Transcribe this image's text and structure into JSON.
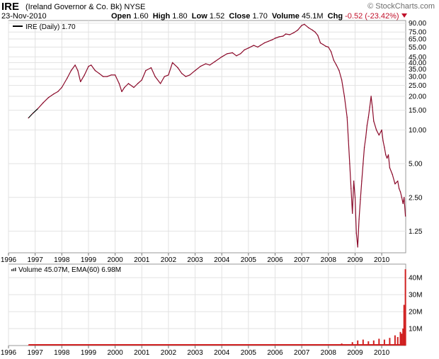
{
  "header": {
    "symbol": "IRE",
    "company": "(Ireland Governor & Co. Bk)",
    "exchange": "NYSE",
    "date": "23-Nov-2010",
    "brand": "© StockCharts.com",
    "open_label": "Open",
    "open": "1.60",
    "high_label": "High",
    "high": "1.80",
    "low_label": "Low",
    "low": "1.52",
    "close_label": "Close",
    "close": "1.70",
    "volume_label": "Volume",
    "volume": "45.1M",
    "chg_label": "Chg",
    "chg": "-0.52 (-23.42%)"
  },
  "colors": {
    "price_line": "#8b0a2a",
    "early_line": "#000000",
    "volume_fill": "#d02020",
    "grid": "#e2e2e2",
    "border": "#9a9a9a",
    "chg_down": "#c0102a"
  },
  "chart_data": [
    {
      "type": "line",
      "legend": "IRE (Daily) 1.70",
      "y_scale": "log",
      "ylim": [
        0.8,
        95
      ],
      "y_ticks": [
        90,
        75,
        65,
        55,
        45,
        40,
        35,
        30,
        25,
        20,
        15,
        10,
        5,
        2.5,
        1.25
      ],
      "y_tick_labels": [
        "90.00",
        "75.00",
        "65.00",
        "55.00",
        "45.00",
        "40.00",
        "35.00",
        "30.00",
        "25.00",
        "20.00",
        "15.00",
        "10.00",
        "5.00",
        "2.50",
        "1.25"
      ],
      "x_tick_labels": [
        "1996",
        "1997",
        "1998",
        "1999",
        "2000",
        "2001",
        "2002",
        "2003",
        "2004",
        "2005",
        "2006",
        "2007",
        "2008",
        "2009",
        "2010"
      ],
      "x_ticks": [
        1996.0,
        1997.0,
        1998.0,
        1999.0,
        2000.0,
        2001.0,
        2002.0,
        2003.0,
        2004.0,
        2005.0,
        2006.0,
        2007.0,
        2008.0,
        2009.0,
        2010.0
      ],
      "xlim": [
        1996.0,
        2010.9
      ],
      "series": [
        {
          "name": "IRE",
          "x": [
            1996.75,
            1996.9,
            1997.1,
            1997.3,
            1997.5,
            1997.7,
            1997.85,
            1998.0,
            1998.2,
            1998.35,
            1998.5,
            1998.6,
            1998.7,
            1998.85,
            1999.0,
            1999.1,
            1999.25,
            1999.4,
            1999.55,
            1999.7,
            1999.85,
            2000.0,
            2000.15,
            2000.25,
            2000.35,
            2000.5,
            2000.7,
            2000.85,
            2001.0,
            2001.15,
            2001.35,
            2001.5,
            2001.7,
            2001.85,
            2002.0,
            2002.15,
            2002.35,
            2002.5,
            2002.65,
            2002.8,
            2003.0,
            2003.2,
            2003.4,
            2003.55,
            2003.75,
            2004.0,
            2004.2,
            2004.4,
            2004.55,
            2004.7,
            2004.85,
            2005.0,
            2005.2,
            2005.35,
            2005.45,
            2005.6,
            2005.75,
            2005.9,
            2006.0,
            2006.15,
            2006.3,
            2006.4,
            2006.55,
            2006.7,
            2006.85,
            2007.0,
            2007.1,
            2007.25,
            2007.4,
            2007.5,
            2007.6,
            2007.7,
            2007.8,
            2007.9,
            2008.0,
            2008.1,
            2008.2,
            2008.3,
            2008.4,
            2008.5,
            2008.6,
            2008.7,
            2008.75,
            2008.8,
            2008.85,
            2008.9,
            2008.95,
            2009.0,
            2009.05,
            2009.1,
            2009.15,
            2009.2,
            2009.25,
            2009.3,
            2009.35,
            2009.4,
            2009.45,
            2009.5,
            2009.55,
            2009.6,
            2009.65,
            2009.7,
            2009.8,
            2009.9,
            2010.0,
            2010.05,
            2010.1,
            2010.15,
            2010.2,
            2010.25,
            2010.3,
            2010.4,
            2010.5,
            2010.6,
            2010.65,
            2010.7,
            2010.75,
            2010.8,
            2010.84,
            2010.89
          ],
          "y": [
            12.8,
            14.0,
            15.5,
            17.5,
            19.5,
            21.0,
            22.0,
            24.0,
            29.0,
            34.0,
            38.0,
            34.0,
            27.0,
            31.0,
            37.0,
            38.0,
            34.0,
            32.0,
            30.0,
            30.0,
            31.0,
            31.0,
            26.0,
            22.0,
            24.0,
            26.0,
            24.0,
            26.0,
            28.0,
            34.0,
            36.0,
            30.0,
            26.0,
            30.0,
            31.0,
            40.0,
            36.0,
            32.0,
            30.0,
            31.0,
            34.0,
            37.0,
            39.0,
            38.0,
            41.0,
            45.0,
            48.0,
            49.0,
            46.0,
            48.0,
            52.0,
            54.0,
            57.0,
            55.0,
            57.0,
            60.0,
            62.0,
            64.0,
            66.0,
            68.0,
            69.0,
            72.0,
            71.0,
            74.0,
            78.0,
            86.0,
            88.0,
            82.0,
            78.0,
            75.0,
            70.0,
            60.0,
            58.0,
            56.0,
            55.0,
            50.0,
            42.0,
            38.0,
            34.0,
            28.0,
            20.0,
            13.0,
            8.0,
            5.0,
            3.0,
            1.8,
            3.5,
            2.5,
            1.2,
            0.9,
            1.6,
            2.4,
            3.5,
            5.0,
            7.0,
            8.5,
            11.0,
            13.0,
            16.0,
            20.0,
            16.0,
            12.0,
            10.0,
            9.0,
            10.0,
            8.0,
            7.0,
            6.0,
            5.6,
            6.0,
            4.6,
            4.0,
            3.3,
            3.5,
            3.0,
            2.8,
            2.5,
            2.2,
            2.5,
            1.7
          ]
        }
      ]
    },
    {
      "type": "bar",
      "legend": "Volume 45.07M, EMA(60) 6.98M",
      "ylim": [
        0,
        48
      ],
      "y_ticks": [
        10,
        20,
        30,
        40
      ],
      "y_tick_labels": [
        "10M",
        "20M",
        "30M",
        "40M"
      ],
      "x_tick_labels": [
        "1996",
        "1997",
        "1998",
        "1999",
        "2000",
        "2001",
        "2002",
        "2003",
        "2004",
        "2005",
        "2006",
        "2007",
        "2008",
        "2009",
        "2010"
      ],
      "x_ticks": [
        1996.0,
        1997.0,
        1998.0,
        1999.0,
        2000.0,
        2001.0,
        2002.0,
        2003.0,
        2004.0,
        2005.0,
        2006.0,
        2007.0,
        2008.0,
        2009.0,
        2010.0
      ],
      "xlim": [
        1996.0,
        2010.9
      ],
      "series": [
        {
          "name": "Volume",
          "x": [
            1996.75,
            2000.0,
            2004.0,
            2007.0,
            2008.0,
            2008.5,
            2008.9,
            2009.1,
            2009.3,
            2009.5,
            2009.7,
            2009.9,
            2010.1,
            2010.3,
            2010.5,
            2010.6,
            2010.7,
            2010.75,
            2010.8,
            2010.84,
            2010.86,
            2010.89
          ],
          "values": [
            0.2,
            0.3,
            0.3,
            0.4,
            0.8,
            1.2,
            2.0,
            3.0,
            3.5,
            2.5,
            3.0,
            4.0,
            3.5,
            4.5,
            6.0,
            5.0,
            8.0,
            7.0,
            10.0,
            24.0,
            12.0,
            45.0
          ]
        }
      ]
    }
  ]
}
